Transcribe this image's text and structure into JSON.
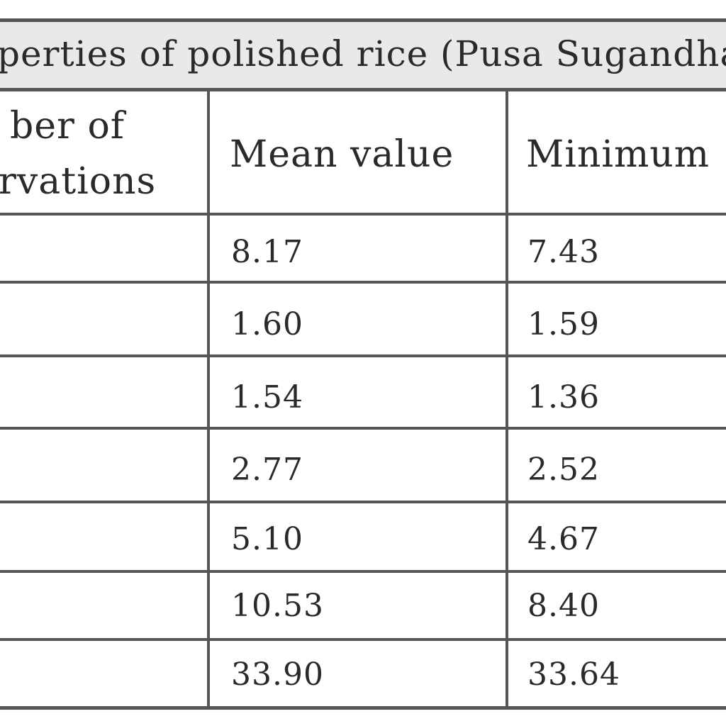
{
  "table": {
    "title": "perties of polished rice (Pusa Sugandha",
    "headers": {
      "observations_line1": "ber of",
      "observations_line2": "rvations",
      "mean": "Mean value",
      "minimum": "Minimum"
    },
    "rows": [
      {
        "mean": "8.17",
        "minimum": "7.43"
      },
      {
        "mean": "1.60",
        "minimum": "1.59"
      },
      {
        "mean": "1.54",
        "minimum": "1.36"
      },
      {
        "mean": "2.77",
        "minimum": "2.52"
      },
      {
        "mean": "5.10",
        "minimum": "4.67"
      },
      {
        "mean": "10.53",
        "minimum": "8.40"
      },
      {
        "mean": "33.90",
        "minimum": "33.64"
      }
    ]
  }
}
